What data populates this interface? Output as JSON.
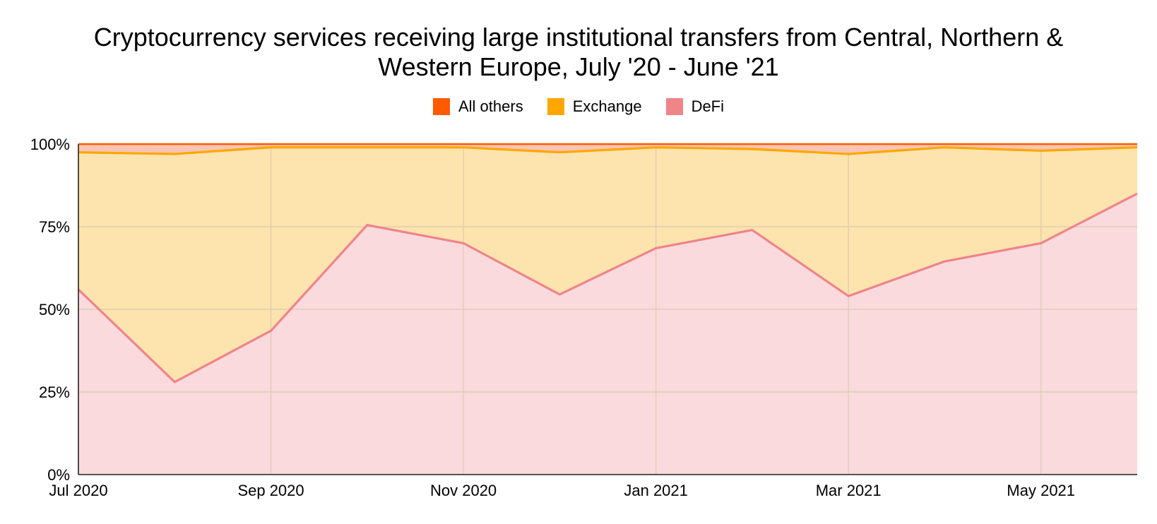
{
  "title_line1": "Cryptocurrency services receiving large institutional transfers from Central, Northern &",
  "title_line2": "Western Europe, July '20 - June '21",
  "colors": {
    "all_others_line": "#ff5a00",
    "all_others_fill": "#fbc4b4",
    "exchange_line": "#ffa600",
    "exchange_fill": "#fde3ae",
    "defi_line": "#ef8489",
    "defi_fill": "#fadadd",
    "grid": "#dccbb0"
  },
  "chart_data": {
    "type": "area",
    "stacked": "percent",
    "title": "Cryptocurrency services receiving large institutional transfers from Central, Northern & Western Europe, July '20 - June '21",
    "x": [
      "2020-07",
      "2020-08",
      "2020-09",
      "2020-10",
      "2020-11",
      "2020-12",
      "2021-01",
      "2021-02",
      "2021-03",
      "2021-04",
      "2021-05",
      "2021-06"
    ],
    "x_tick_labels": [
      "Jul 2020",
      "Sep 2020",
      "Nov 2020",
      "Jan 2021",
      "Mar 2021",
      "May 2021"
    ],
    "x_tick_months": [
      "2020-07",
      "2020-09",
      "2020-11",
      "2021-01",
      "2021-03",
      "2021-05"
    ],
    "series": [
      {
        "name": "DeFi",
        "values": [
          56,
          28,
          43.5,
          75.5,
          70,
          54.5,
          68.5,
          74,
          54,
          64.5,
          70,
          85
        ],
        "color": "#ef8489"
      },
      {
        "name": "Exchange",
        "values": [
          41.5,
          69,
          55.5,
          23.5,
          29,
          43,
          30.5,
          24.5,
          43,
          34.5,
          28,
          14
        ],
        "color": "#ffa600"
      },
      {
        "name": "All others",
        "values": [
          2.5,
          3,
          1,
          1,
          1,
          2.5,
          1,
          1.5,
          3,
          1,
          2,
          1
        ],
        "color": "#ff5a00"
      }
    ],
    "legend": [
      "All others",
      "Exchange",
      "DeFi"
    ],
    "legend_position": "top",
    "y_ticks": [
      "0%",
      "25%",
      "50%",
      "75%",
      "100%"
    ],
    "ylim": [
      0,
      100
    ],
    "grid": true,
    "xlabel": "",
    "ylabel": ""
  }
}
